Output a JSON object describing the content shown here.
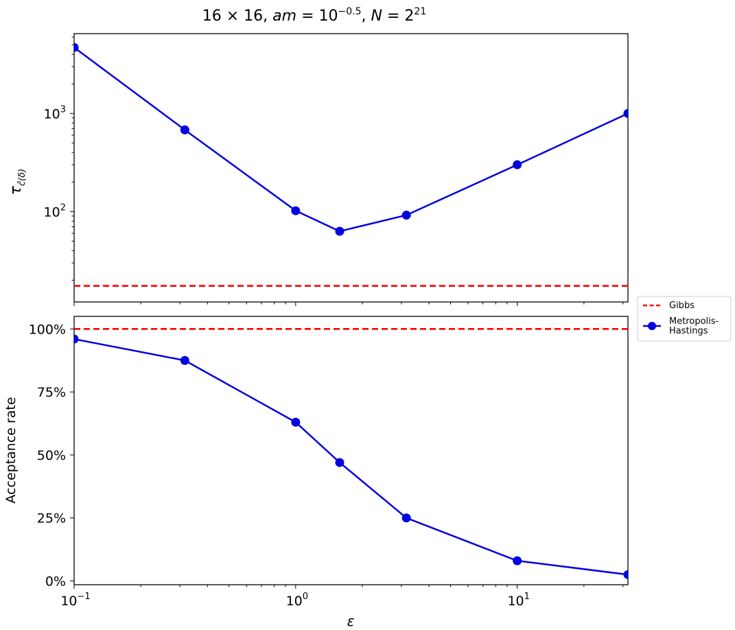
{
  "title": {
    "pre": "16 × 16, ",
    "am_var": "am",
    "am_eq": " = 10",
    "am_exp": "−0.5",
    "n_sep": ", ",
    "n_var": "N",
    "n_eq": " = 2",
    "n_exp": "21"
  },
  "colors": {
    "gibbs": "#ff0000",
    "mh": "#0000e0"
  },
  "legend": {
    "position": "right-middle",
    "gibbs": "Gibbs",
    "mh_line1": "Metropolis-",
    "mh_line2": "Hastings"
  },
  "chart_data": [
    {
      "type": "line",
      "panel": "top",
      "x_scale": "log",
      "y_scale": "log",
      "xlim": [
        0.1,
        31.6
      ],
      "ylim": [
        12,
        6500
      ],
      "ylabel": {
        "base": "τ",
        "sub": "ĉ(δ)"
      },
      "y_ticks": [
        {
          "value": 100,
          "base": "10",
          "exp": "2"
        },
        {
          "value": 1000,
          "base": "10",
          "exp": "3"
        }
      ],
      "series": [
        {
          "name": "Gibbs",
          "style": "dashed",
          "constant": 17.5
        },
        {
          "name": "Metropolis-Hastings",
          "style": "solid-marker",
          "x": [
            0.1,
            0.316,
            1.0,
            1.58,
            3.16,
            10.0,
            31.6
          ],
          "y": [
            4700,
            680,
            102,
            63,
            92,
            300,
            1000
          ]
        }
      ]
    },
    {
      "type": "line",
      "panel": "bottom",
      "x_scale": "log",
      "y_scale": "linear",
      "xlim": [
        0.1,
        31.6
      ],
      "ylim": [
        -1.5,
        105
      ],
      "ylabel": "Acceptance rate",
      "xlabel": "ε",
      "y_ticks": [
        {
          "value": 0,
          "label": "0%"
        },
        {
          "value": 25,
          "label": "25%"
        },
        {
          "value": 50,
          "label": "50%"
        },
        {
          "value": 75,
          "label": "75%"
        },
        {
          "value": 100,
          "label": "100%"
        }
      ],
      "x_ticks": [
        {
          "value": 0.1,
          "base": "10",
          "exp": "−1"
        },
        {
          "value": 1,
          "base": "10",
          "exp": "0"
        },
        {
          "value": 10,
          "base": "10",
          "exp": "1"
        }
      ],
      "series": [
        {
          "name": "Gibbs",
          "style": "dashed",
          "constant": 100
        },
        {
          "name": "Metropolis-Hastings",
          "style": "solid-marker",
          "x": [
            0.1,
            0.316,
            1.0,
            1.58,
            3.16,
            10.0,
            31.6
          ],
          "y": [
            96,
            87.5,
            63,
            47,
            25,
            8,
            2.5
          ]
        }
      ]
    }
  ]
}
